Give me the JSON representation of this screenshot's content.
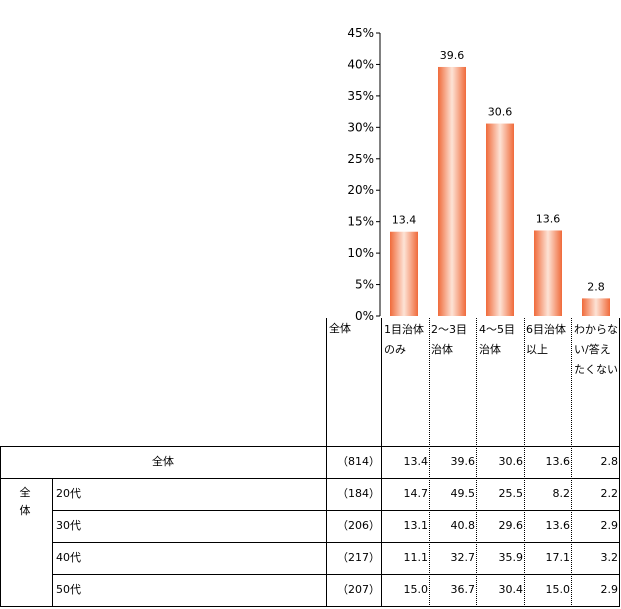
{
  "chart_data": {
    "type": "bar",
    "categories": [
      "1目治体のみ",
      "2～3目治体",
      "4～5目治体",
      "6目治体以上",
      "わからない/答えたくない"
    ],
    "values": [
      13.4,
      39.6,
      30.6,
      13.6,
      2.8
    ],
    "data_labels": [
      "13.4",
      "39.6",
      "30.6",
      "13.6",
      "2.8"
    ],
    "ylim": [
      0,
      45
    ],
    "y_ticks": [
      "0%",
      "5%",
      "10%",
      "15%",
      "20%",
      "25%",
      "30%",
      "35%",
      "40%",
      "45%"
    ],
    "grid": false,
    "legend": "none",
    "bar_color": "#f08a60"
  },
  "table": {
    "header_total": "全体",
    "row_group_label": "全体",
    "rows": [
      {
        "label": "全体",
        "n": "（814）",
        "values": [
          "13.4",
          "39.6",
          "30.6",
          "13.6",
          "2.8"
        ]
      },
      {
        "label": "20代",
        "n": "（184）",
        "values": [
          "14.7",
          "49.5",
          "25.5",
          "8.2",
          "2.2"
        ]
      },
      {
        "label": "30代",
        "n": "（206）",
        "values": [
          "13.1",
          "40.8",
          "29.6",
          "13.6",
          "2.9"
        ]
      },
      {
        "label": "40代",
        "n": "（217）",
        "values": [
          "11.1",
          "32.7",
          "35.9",
          "17.1",
          "3.2"
        ]
      },
      {
        "label": "50代",
        "n": "（207）",
        "values": [
          "15.0",
          "36.7",
          "30.4",
          "15.0",
          "2.9"
        ]
      }
    ]
  }
}
